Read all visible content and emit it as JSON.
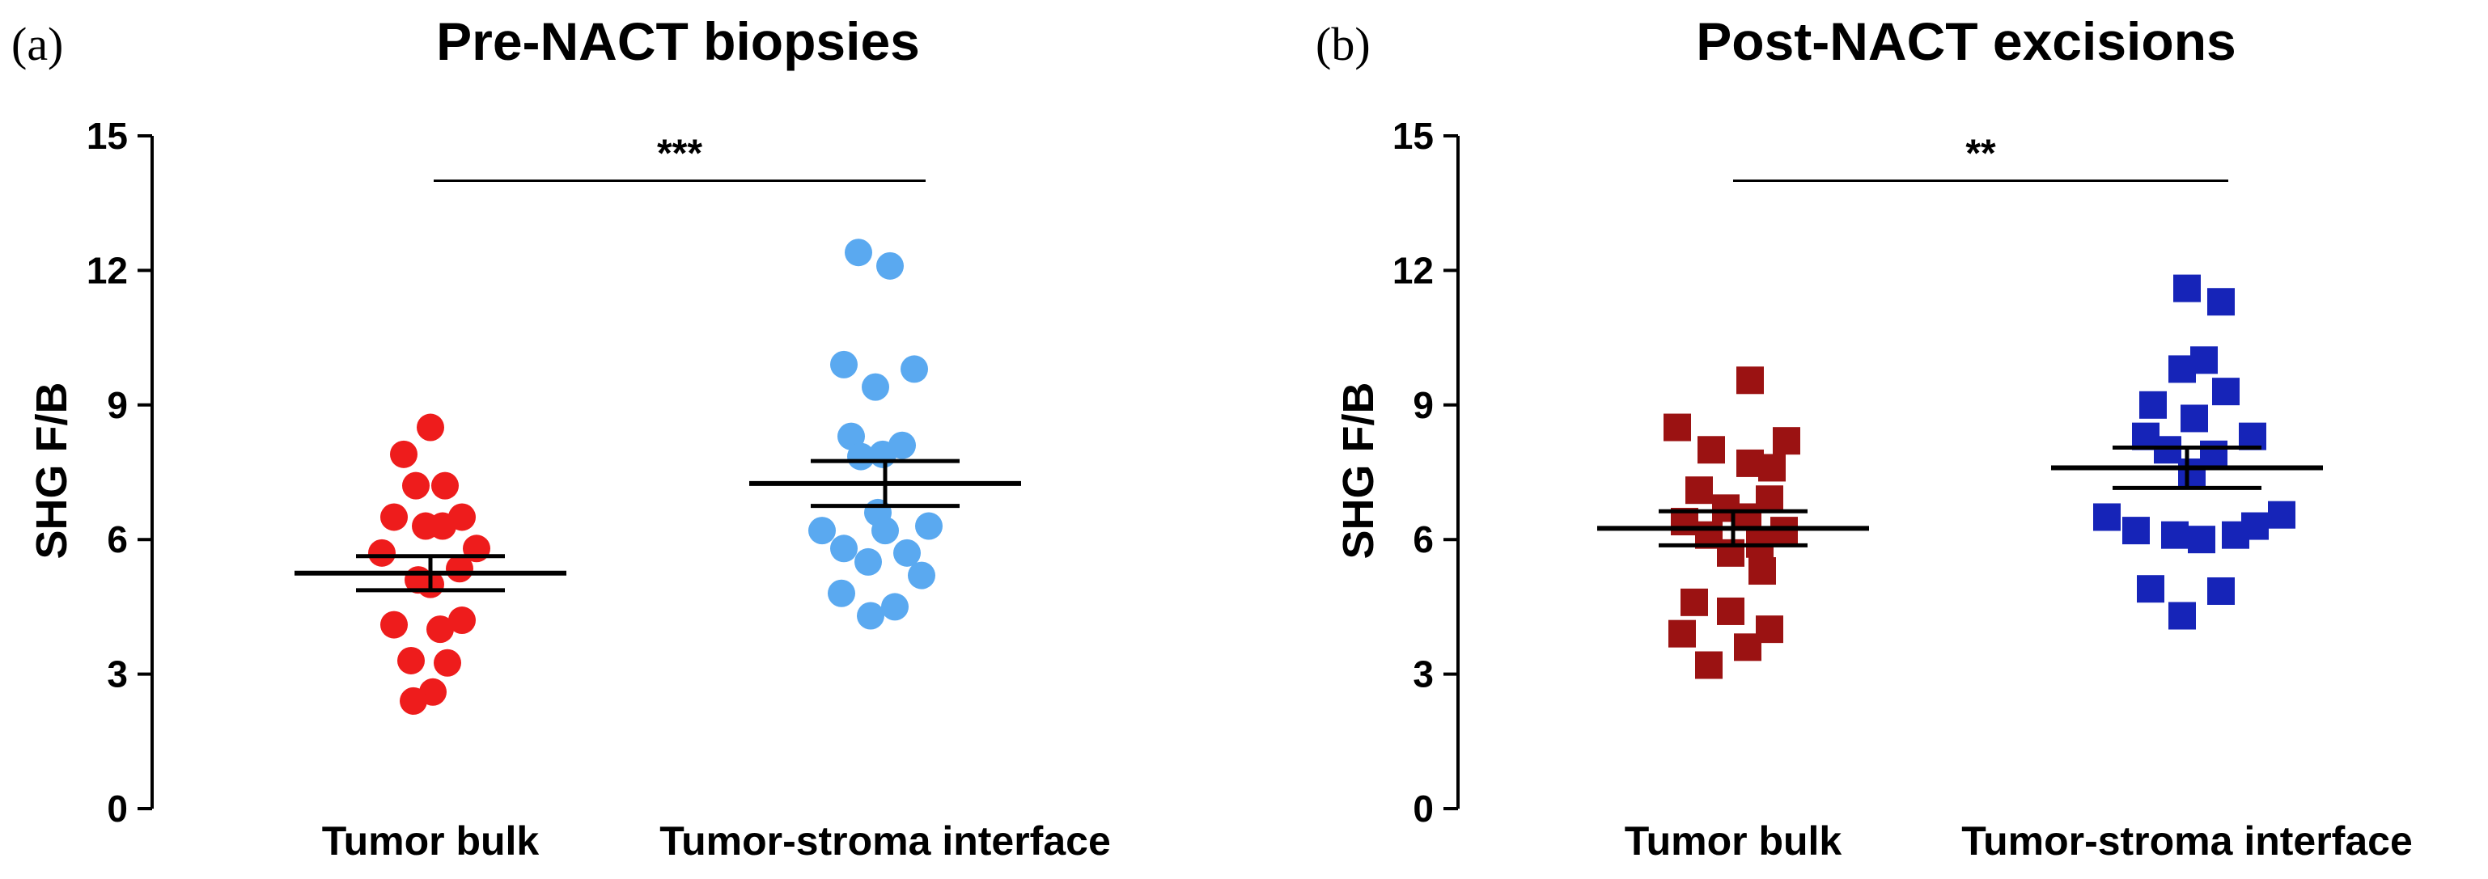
{
  "chart_data": [
    {
      "type": "scatter",
      "panel_label": "(a)",
      "title": "Pre-NACT biopsies",
      "ylabel": "SHG F/B",
      "xlabel": "",
      "ylim": [
        0,
        15
      ],
      "yticks": [
        0,
        3,
        6,
        9,
        12,
        15
      ],
      "ytick_labels": [
        "0",
        "3",
        "6",
        "9",
        "12",
        "15"
      ],
      "categories": [
        "Tumor bulk",
        "Tumor-stroma interface"
      ],
      "marker": "circle",
      "grid": false,
      "significance": {
        "label": "***",
        "between": [
          0,
          1
        ],
        "y": 14.0
      },
      "series": [
        {
          "name": "Tumor bulk",
          "color": "#ee1c1c",
          "mean": 5.25,
          "sem": 0.38,
          "points": [
            {
              "y": 8.5,
              "dx": 0.0
            },
            {
              "y": 7.9,
              "dx": -0.55
            },
            {
              "y": 7.2,
              "dx": -0.3
            },
            {
              "y": 7.2,
              "dx": 0.3
            },
            {
              "y": 6.5,
              "dx": -0.75
            },
            {
              "y": 6.5,
              "dx": 0.65
            },
            {
              "y": 6.3,
              "dx": -0.1
            },
            {
              "y": 6.3,
              "dx": 0.25
            },
            {
              "y": 5.8,
              "dx": 0.95
            },
            {
              "y": 5.7,
              "dx": -1.0
            },
            {
              "y": 5.35,
              "dx": 0.6
            },
            {
              "y": 5.1,
              "dx": -0.25
            },
            {
              "y": 5.0,
              "dx": 0.0
            },
            {
              "y": 4.2,
              "dx": 0.65
            },
            {
              "y": 4.1,
              "dx": -0.75
            },
            {
              "y": 4.0,
              "dx": 0.2
            },
            {
              "y": 3.3,
              "dx": -0.4
            },
            {
              "y": 3.25,
              "dx": 0.35
            },
            {
              "y": 2.6,
              "dx": 0.05
            },
            {
              "y": 2.4,
              "dx": -0.35
            }
          ]
        },
        {
          "name": "Tumor-stroma interface",
          "color": "#5aa9f0",
          "mean": 7.25,
          "sem": 0.5,
          "points": [
            {
              "y": 12.4,
              "dx": -0.55
            },
            {
              "y": 12.1,
              "dx": 0.1
            },
            {
              "y": 9.9,
              "dx": -0.85
            },
            {
              "y": 9.8,
              "dx": 0.6
            },
            {
              "y": 9.4,
              "dx": -0.2
            },
            {
              "y": 8.3,
              "dx": -0.7
            },
            {
              "y": 8.1,
              "dx": 0.35
            },
            {
              "y": 7.9,
              "dx": -0.05
            },
            {
              "y": 7.85,
              "dx": -0.5
            },
            {
              "y": 6.6,
              "dx": -0.15
            },
            {
              "y": 6.3,
              "dx": 0.9
            },
            {
              "y": 6.2,
              "dx": -1.3
            },
            {
              "y": 6.2,
              "dx": 0.0
            },
            {
              "y": 5.8,
              "dx": -0.85
            },
            {
              "y": 5.7,
              "dx": 0.45
            },
            {
              "y": 5.5,
              "dx": -0.35
            },
            {
              "y": 5.2,
              "dx": 0.75
            },
            {
              "y": 4.8,
              "dx": -0.9
            },
            {
              "y": 4.5,
              "dx": 0.2
            },
            {
              "y": 4.3,
              "dx": -0.3
            }
          ]
        }
      ]
    },
    {
      "type": "scatter",
      "panel_label": "(b)",
      "title": "Post-NACT excisions",
      "ylabel": "SHG F/B",
      "xlabel": "",
      "ylim": [
        0,
        15
      ],
      "yticks": [
        0,
        3,
        6,
        9,
        12,
        15
      ],
      "ytick_labels": [
        "0",
        "3",
        "6",
        "9",
        "12",
        "15"
      ],
      "categories": [
        "Tumor bulk",
        "Tumor-stroma interface"
      ],
      "marker": "square",
      "grid": false,
      "significance": {
        "label": "**",
        "between": [
          0,
          1
        ],
        "y": 14.0
      },
      "series": [
        {
          "name": "Tumor bulk",
          "color": "#9b1212",
          "mean": 6.25,
          "sem": 0.38,
          "points": [
            {
              "y": 9.55,
              "dx": 0.35
            },
            {
              "y": 8.5,
              "dx": -1.15
            },
            {
              "y": 8.2,
              "dx": 1.1
            },
            {
              "y": 8.0,
              "dx": -0.45
            },
            {
              "y": 7.7,
              "dx": 0.35
            },
            {
              "y": 7.6,
              "dx": 0.8
            },
            {
              "y": 7.1,
              "dx": -0.7
            },
            {
              "y": 6.9,
              "dx": 0.75
            },
            {
              "y": 6.7,
              "dx": -0.15
            },
            {
              "y": 6.5,
              "dx": 0.3
            },
            {
              "y": 6.4,
              "dx": -1.0
            },
            {
              "y": 6.2,
              "dx": 1.05
            },
            {
              "y": 6.1,
              "dx": -0.5
            },
            {
              "y": 5.9,
              "dx": 0.55
            },
            {
              "y": 5.7,
              "dx": -0.05
            },
            {
              "y": 5.3,
              "dx": 0.6
            },
            {
              "y": 4.6,
              "dx": -0.8
            },
            {
              "y": 4.4,
              "dx": -0.05
            },
            {
              "y": 4.0,
              "dx": 0.75
            },
            {
              "y": 3.9,
              "dx": -1.05
            },
            {
              "y": 3.6,
              "dx": 0.3
            },
            {
              "y": 3.2,
              "dx": -0.5
            }
          ]
        },
        {
          "name": "Tumor-stroma interface",
          "color": "#1624b8",
          "mean": 7.6,
          "sem": 0.45,
          "points": [
            {
              "y": 11.6,
              "dx": 0.0
            },
            {
              "y": 11.3,
              "dx": 0.7
            },
            {
              "y": 10.0,
              "dx": 0.35
            },
            {
              "y": 9.8,
              "dx": -0.1
            },
            {
              "y": 9.3,
              "dx": 0.8
            },
            {
              "y": 9.0,
              "dx": -0.7
            },
            {
              "y": 8.7,
              "dx": 0.15
            },
            {
              "y": 8.3,
              "dx": 1.35
            },
            {
              "y": 8.3,
              "dx": -0.85
            },
            {
              "y": 8.0,
              "dx": -0.4
            },
            {
              "y": 7.9,
              "dx": 0.55
            },
            {
              "y": 7.5,
              "dx": 0.1
            },
            {
              "y": 6.55,
              "dx": 1.95
            },
            {
              "y": 6.5,
              "dx": -1.65
            },
            {
              "y": 6.3,
              "dx": 1.4
            },
            {
              "y": 6.2,
              "dx": -1.05
            },
            {
              "y": 6.1,
              "dx": 1.0
            },
            {
              "y": 6.1,
              "dx": -0.25
            },
            {
              "y": 6.0,
              "dx": 0.3
            },
            {
              "y": 4.9,
              "dx": -0.75
            },
            {
              "y": 4.85,
              "dx": 0.7
            },
            {
              "y": 4.3,
              "dx": -0.1
            }
          ]
        }
      ]
    }
  ]
}
